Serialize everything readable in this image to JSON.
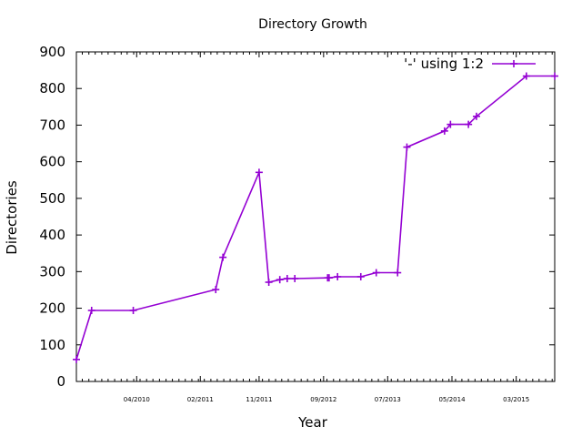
{
  "chart_data": {
    "type": "line",
    "title": "Directory Growth",
    "xlabel": "Year",
    "ylabel": "Directories",
    "ylim": [
      0,
      900
    ],
    "xlim": [
      "2009-07-04",
      "2015-09-13"
    ],
    "yticks": [
      0,
      100,
      200,
      300,
      400,
      500,
      600,
      700,
      800,
      900
    ],
    "xticks": [
      {
        "date": "2010-04-15",
        "label": "04/2010"
      },
      {
        "date": "2011-02-10",
        "label": "02/2011"
      },
      {
        "date": "2011-11-15",
        "label": "11/2011"
      },
      {
        "date": "2012-09-15",
        "label": "09/2012"
      },
      {
        "date": "2013-07-15",
        "label": "07/2013"
      },
      {
        "date": "2014-05-15",
        "label": "05/2014"
      },
      {
        "date": "2015-03-15",
        "label": "03/2015"
      }
    ],
    "legend_position": "top-right",
    "color": "#9400d3",
    "series": [
      {
        "name": "'-' using 1:2",
        "points": [
          {
            "x": "2009-07-04",
            "y": 60
          },
          {
            "x": "2009-09-14",
            "y": 194
          },
          {
            "x": "2010-03-30",
            "y": 194
          },
          {
            "x": "2011-04-24",
            "y": 251
          },
          {
            "x": "2011-05-28",
            "y": 339
          },
          {
            "x": "2011-11-15",
            "y": 571
          },
          {
            "x": "2011-12-31",
            "y": 271
          },
          {
            "x": "2012-02-21",
            "y": 278
          },
          {
            "x": "2012-03-27",
            "y": 281
          },
          {
            "x": "2012-05-02",
            "y": 281
          },
          {
            "x": "2012-10-04",
            "y": 283
          },
          {
            "x": "2012-10-11",
            "y": 283
          },
          {
            "x": "2012-11-20",
            "y": 286
          },
          {
            "x": "2013-03-10",
            "y": 286
          },
          {
            "x": "2013-05-22",
            "y": 297
          },
          {
            "x": "2013-08-31",
            "y": 297
          },
          {
            "x": "2013-10-14",
            "y": 640
          },
          {
            "x": "2014-04-10",
            "y": 684
          },
          {
            "x": "2014-05-08",
            "y": 702
          },
          {
            "x": "2014-08-01",
            "y": 702
          },
          {
            "x": "2014-09-08",
            "y": 724
          },
          {
            "x": "2015-05-02",
            "y": 834
          },
          {
            "x": "2015-09-13",
            "y": 834
          }
        ]
      }
    ]
  }
}
